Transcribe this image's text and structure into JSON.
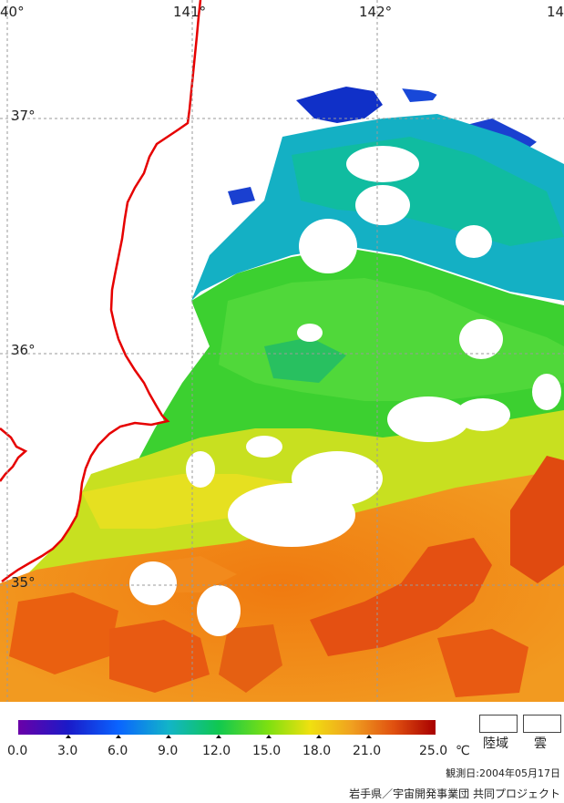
{
  "map": {
    "lon_labels": [
      "40°",
      "141°",
      "142°",
      "14"
    ],
    "lat_labels": [
      "37°",
      "36°",
      "35°"
    ],
    "colors": {
      "coast": "#e60000",
      "grid": "#9a9a9a",
      "land": "#ffffff",
      "cloud": "#ffffff"
    }
  },
  "colorbar": {
    "tick_labels": [
      "0.0",
      "3.0",
      "6.0",
      "9.0",
      "12.0",
      "15.0",
      "18.0",
      "21.0",
      "25.0"
    ],
    "unit": "℃",
    "colors": [
      "#6a00a8",
      "#1a1ac8",
      "#0a64ff",
      "#12b4c8",
      "#10c850",
      "#7ee010",
      "#f0e010",
      "#f0a020",
      "#e05010",
      "#a80000"
    ]
  },
  "legend": {
    "land_label": "陸域",
    "cloud_label": "雲"
  },
  "footer": {
    "observation_date": "観測日:2004年05月17日",
    "credit": "岩手県／宇宙開発事業団 共同プロジェクト"
  }
}
